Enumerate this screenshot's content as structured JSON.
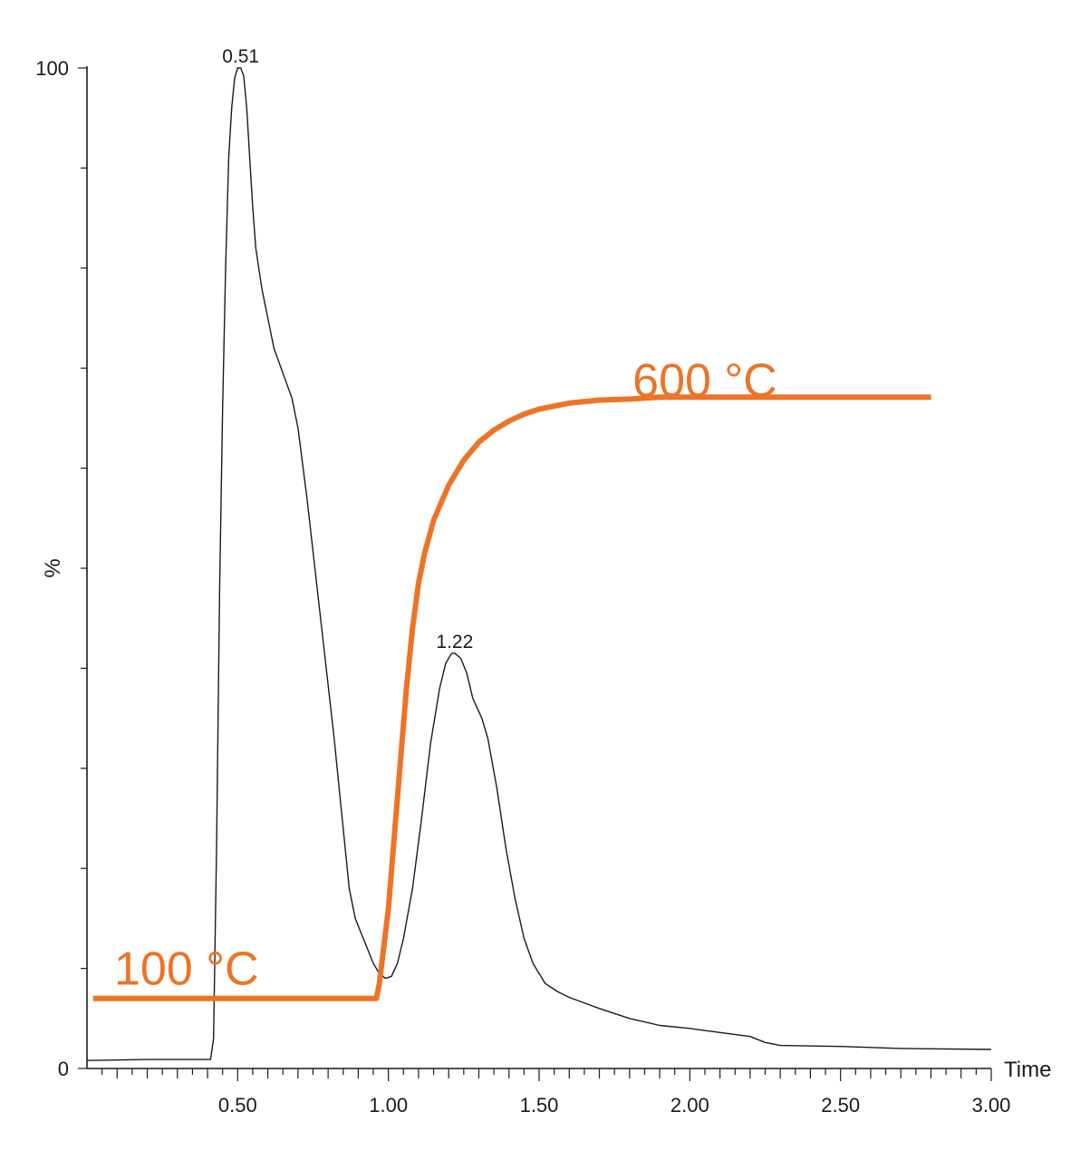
{
  "chart_data": {
    "type": "line",
    "xlabel": "Time",
    "ylabel": "%",
    "xlim": [
      0.0,
      3.0
    ],
    "ylim": [
      0,
      100
    ],
    "x_ticks": [
      {
        "value": 0.5,
        "label": "0.50"
      },
      {
        "value": 1.0,
        "label": "1.00"
      },
      {
        "value": 1.5,
        "label": "1.50"
      },
      {
        "value": 2.0,
        "label": "2.00"
      },
      {
        "value": 2.5,
        "label": "2.50"
      },
      {
        "value": 3.0,
        "label": "3.00"
      }
    ],
    "x_minor_step": 0.05,
    "y_ticks": [
      {
        "value": 0,
        "label": "0"
      },
      {
        "value": 100,
        "label": "100"
      }
    ],
    "y_minor_step": 10,
    "y_mid_label": {
      "value": 50,
      "label": "%"
    },
    "colors": {
      "signal": "#1a1a1a",
      "temperature": "#ed7326",
      "axis": "#1a1a1a"
    },
    "series": [
      {
        "points": [
          [
            0.0,
            0.8
          ],
          [
            0.2,
            0.9
          ],
          [
            0.41,
            0.9
          ],
          [
            0.42,
            3
          ],
          [
            0.43,
            22
          ],
          [
            0.44,
            48
          ],
          [
            0.45,
            66
          ],
          [
            0.46,
            80
          ],
          [
            0.47,
            91
          ],
          [
            0.48,
            96
          ],
          [
            0.49,
            99
          ],
          [
            0.5,
            100
          ],
          [
            0.51,
            100
          ],
          [
            0.52,
            99.2
          ],
          [
            0.53,
            96
          ],
          [
            0.54,
            91
          ],
          [
            0.55,
            86
          ],
          [
            0.56,
            82
          ],
          [
            0.57,
            80
          ],
          [
            0.58,
            78
          ],
          [
            0.6,
            75
          ],
          [
            0.62,
            72
          ],
          [
            0.65,
            69.5
          ],
          [
            0.68,
            67
          ],
          [
            0.7,
            64
          ],
          [
            0.73,
            57
          ],
          [
            0.76,
            49
          ],
          [
            0.79,
            41
          ],
          [
            0.82,
            33
          ],
          [
            0.84,
            27
          ],
          [
            0.86,
            21
          ],
          [
            0.87,
            18
          ],
          [
            0.89,
            15
          ],
          [
            0.91,
            13.5
          ],
          [
            0.93,
            12
          ],
          [
            0.95,
            10.5
          ],
          [
            0.97,
            9.5
          ],
          [
            0.99,
            9
          ],
          [
            1.01,
            9.2
          ],
          [
            1.03,
            10.5
          ],
          [
            1.05,
            13
          ],
          [
            1.08,
            18
          ],
          [
            1.11,
            25
          ],
          [
            1.14,
            32.5
          ],
          [
            1.17,
            38
          ],
          [
            1.19,
            40.5
          ],
          [
            1.21,
            41.5
          ],
          [
            1.22,
            41.5
          ],
          [
            1.24,
            41
          ],
          [
            1.26,
            39.5
          ],
          [
            1.28,
            37
          ],
          [
            1.31,
            35
          ],
          [
            1.33,
            33
          ],
          [
            1.36,
            28
          ],
          [
            1.39,
            22
          ],
          [
            1.42,
            17
          ],
          [
            1.45,
            13
          ],
          [
            1.48,
            10.5
          ],
          [
            1.52,
            8.5
          ],
          [
            1.56,
            7.7
          ],
          [
            1.6,
            7.1
          ],
          [
            1.7,
            6
          ],
          [
            1.8,
            5
          ],
          [
            1.9,
            4.3
          ],
          [
            2.0,
            4
          ],
          [
            2.1,
            3.6
          ],
          [
            2.2,
            3.2
          ],
          [
            2.25,
            2.6
          ],
          [
            2.3,
            2.3
          ],
          [
            2.5,
            2.2
          ],
          [
            2.7,
            2.0
          ],
          [
            3.0,
            1.9
          ]
        ]
      },
      {
        "points": [
          [
            0.02,
            7
          ],
          [
            0.96,
            7
          ],
          [
            0.97,
            8.5
          ],
          [
            1.0,
            16
          ],
          [
            1.03,
            27
          ],
          [
            1.06,
            38
          ],
          [
            1.08,
            44
          ],
          [
            1.1,
            48.5
          ],
          [
            1.12,
            51.5
          ],
          [
            1.15,
            54.8
          ],
          [
            1.2,
            58.3
          ],
          [
            1.25,
            60.8
          ],
          [
            1.3,
            62.6
          ],
          [
            1.35,
            63.8
          ],
          [
            1.4,
            64.7
          ],
          [
            1.45,
            65.4
          ],
          [
            1.5,
            65.9
          ],
          [
            1.6,
            66.5
          ],
          [
            1.7,
            66.8
          ],
          [
            1.8,
            66.9
          ],
          [
            1.9,
            67.1
          ],
          [
            2.0,
            67.1
          ],
          [
            2.5,
            67.1
          ],
          [
            2.8,
            67.1
          ]
        ]
      }
    ],
    "annotations": [
      {
        "text": "0.51",
        "x": 0.51,
        "y": 100
      },
      {
        "text": "1.22",
        "x": 1.22,
        "y": 41.5
      },
      {
        "text": "100 °C",
        "x": 0.33,
        "y": 10
      },
      {
        "text": "600 °C",
        "x": 2.05,
        "y": 68.8
      }
    ]
  }
}
